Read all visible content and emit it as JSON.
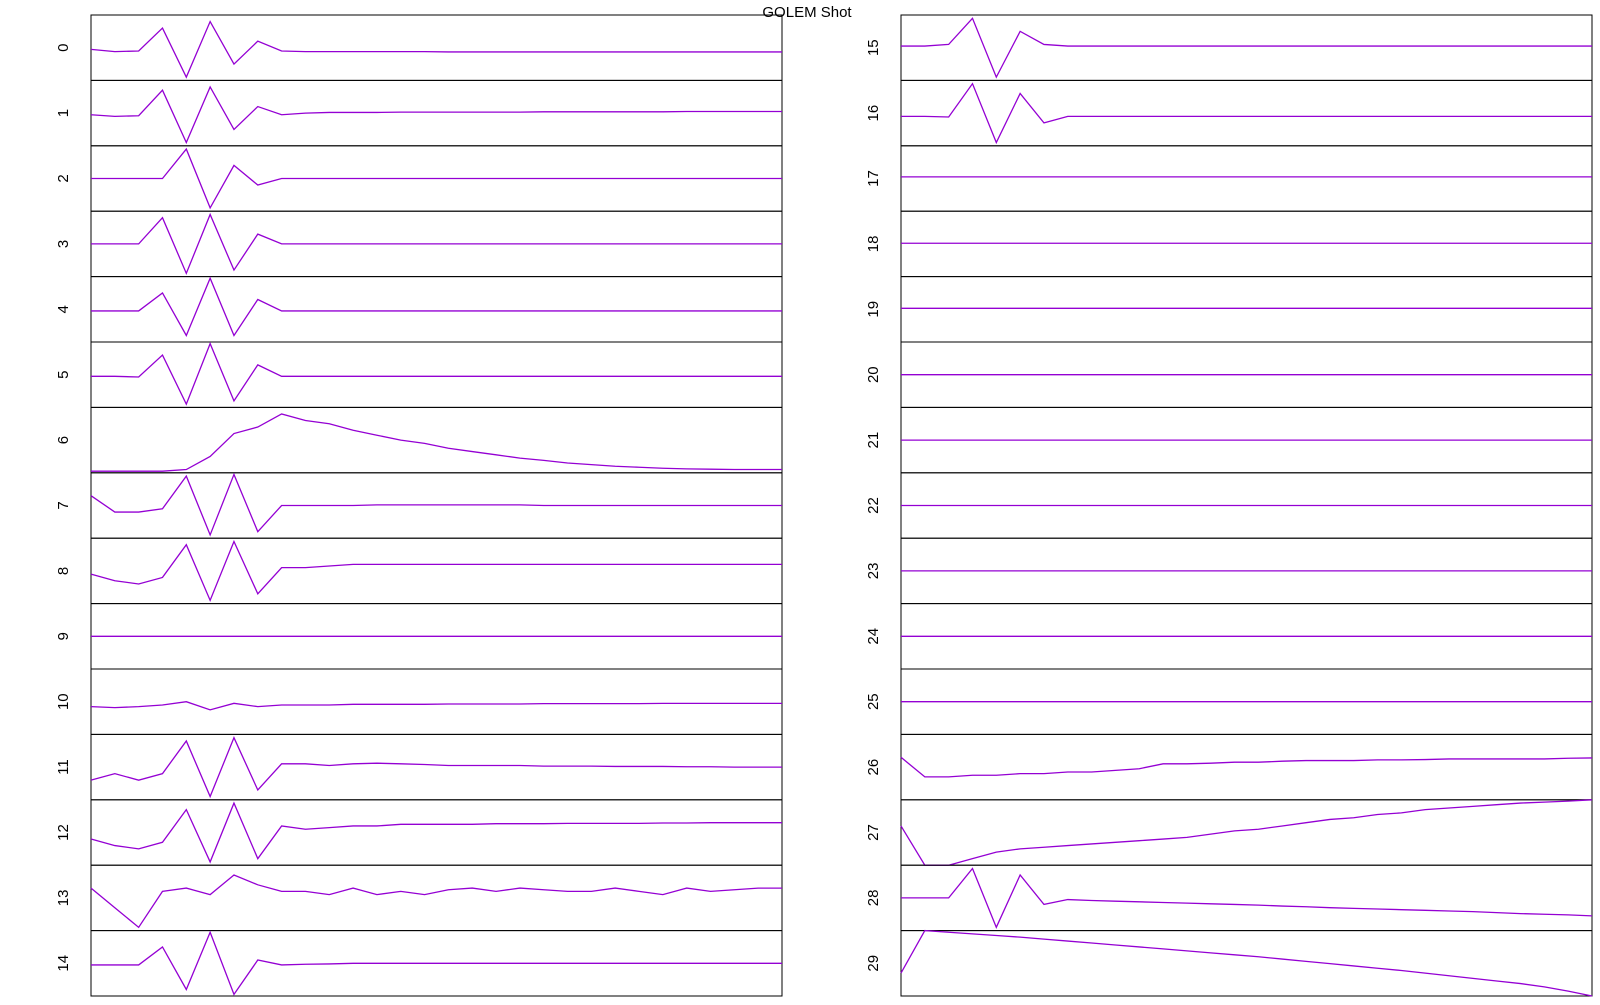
{
  "chart_data": {
    "type": "line",
    "title": "GOLEM Shot",
    "color": "#9400d3",
    "ylim": [
      -1,
      1
    ],
    "series": [
      {
        "name": "0",
        "values": [
          -0.05,
          -0.12,
          -0.1,
          0.6,
          -0.9,
          0.8,
          -0.5,
          0.2,
          -0.1,
          -0.12,
          -0.12,
          -0.12,
          -0.12,
          -0.12,
          -0.12,
          -0.13,
          -0.13,
          -0.13,
          -0.13,
          -0.13,
          -0.13,
          -0.13,
          -0.13,
          -0.13,
          -0.13,
          -0.13,
          -0.13,
          -0.13,
          -0.13,
          -0.13
        ]
      },
      {
        "name": "1",
        "values": [
          -0.05,
          -0.1,
          -0.08,
          0.7,
          -0.9,
          0.8,
          -0.5,
          0.2,
          -0.05,
          0,
          0.02,
          0.02,
          0.02,
          0.03,
          0.03,
          0.03,
          0.03,
          0.03,
          0.03,
          0.04,
          0.04,
          0.04,
          0.04,
          0.04,
          0.04,
          0.05,
          0.05,
          0.05,
          0.05,
          0.05
        ]
      },
      {
        "name": "2",
        "values": [
          0,
          0,
          0,
          0,
          0.9,
          -0.9,
          0.4,
          -0.2,
          0,
          0,
          0,
          0,
          0,
          0,
          0,
          0,
          0,
          0,
          0,
          0,
          0,
          0,
          0,
          0,
          0,
          0,
          0,
          0,
          0,
          0
        ]
      },
      {
        "name": "3",
        "values": [
          0,
          0,
          0,
          0.8,
          -0.9,
          0.9,
          -0.8,
          0.3,
          0,
          0,
          0,
          0,
          0,
          0,
          0,
          0,
          0,
          0,
          0,
          0,
          0,
          0,
          0,
          0,
          0,
          0,
          0,
          0,
          0,
          0
        ]
      },
      {
        "name": "4",
        "values": [
          -0.05,
          -0.05,
          -0.05,
          0.5,
          -0.8,
          0.95,
          -0.8,
          0.3,
          -0.05,
          -0.05,
          -0.05,
          -0.05,
          -0.05,
          -0.05,
          -0.05,
          -0.05,
          -0.05,
          -0.05,
          -0.05,
          -0.05,
          -0.05,
          -0.05,
          -0.05,
          -0.05,
          -0.05,
          -0.05,
          -0.05,
          -0.05,
          -0.05,
          -0.05
        ]
      },
      {
        "name": "5",
        "values": [
          -0.05,
          -0.05,
          -0.07,
          0.6,
          -0.9,
          0.95,
          -0.8,
          0.3,
          -0.05,
          -0.05,
          -0.05,
          -0.05,
          -0.05,
          -0.05,
          -0.05,
          -0.05,
          -0.05,
          -0.05,
          -0.05,
          -0.05,
          -0.05,
          -0.05,
          -0.05,
          -0.05,
          -0.05,
          -0.05,
          -0.05,
          -0.05,
          -0.05,
          -0.05
        ]
      },
      {
        "name": "6",
        "values": [
          -0.95,
          -0.95,
          -0.95,
          -0.95,
          -0.9,
          -0.5,
          0.2,
          0.4,
          0.8,
          0.6,
          0.5,
          0.3,
          0.15,
          0,
          -0.1,
          -0.25,
          -0.35,
          -0.45,
          -0.55,
          -0.62,
          -0.7,
          -0.75,
          -0.8,
          -0.83,
          -0.86,
          -0.88,
          -0.89,
          -0.9,
          -0.9,
          -0.9
        ]
      },
      {
        "name": "7",
        "values": [
          0.3,
          -0.2,
          -0.2,
          -0.1,
          0.9,
          -0.9,
          0.95,
          -0.8,
          0,
          0,
          0,
          0,
          0.02,
          0.02,
          0.02,
          0.02,
          0.02,
          0.02,
          0.02,
          0,
          0,
          0,
          0,
          0,
          0,
          0,
          0,
          0,
          0,
          0
        ]
      },
      {
        "name": "8",
        "values": [
          -0.1,
          -0.3,
          -0.4,
          -0.2,
          0.8,
          -0.9,
          0.9,
          -0.7,
          0.1,
          0.1,
          0.15,
          0.2,
          0.2,
          0.2,
          0.2,
          0.2,
          0.2,
          0.2,
          0.2,
          0.2,
          0.2,
          0.2,
          0.2,
          0.2,
          0.2,
          0.2,
          0.2,
          0.2,
          0.2,
          0.2
        ]
      },
      {
        "name": "9",
        "values": [
          0,
          0,
          0,
          0,
          0,
          0,
          0,
          0,
          0,
          0,
          0,
          0,
          0,
          0,
          0,
          0,
          0,
          0,
          0,
          0,
          0,
          0,
          0,
          0,
          0,
          0,
          0,
          0,
          0,
          0
        ]
      },
      {
        "name": "10",
        "values": [
          -0.15,
          -0.18,
          -0.15,
          -0.1,
          0,
          -0.25,
          -0.05,
          -0.15,
          -0.1,
          -0.1,
          -0.1,
          -0.08,
          -0.08,
          -0.08,
          -0.08,
          -0.07,
          -0.07,
          -0.07,
          -0.07,
          -0.06,
          -0.06,
          -0.06,
          -0.06,
          -0.06,
          -0.05,
          -0.05,
          -0.05,
          -0.05,
          -0.05,
          -0.05
        ]
      },
      {
        "name": "11",
        "values": [
          -0.4,
          -0.2,
          -0.4,
          -0.2,
          0.8,
          -0.9,
          0.9,
          -0.7,
          0.1,
          0.1,
          0.05,
          0.1,
          0.12,
          0.1,
          0.08,
          0.05,
          0.05,
          0.05,
          0.05,
          0.03,
          0.03,
          0.03,
          0.02,
          0.02,
          0.02,
          0.01,
          0.01,
          0,
          0,
          0
        ]
      },
      {
        "name": "12",
        "values": [
          -0.2,
          -0.4,
          -0.5,
          -0.3,
          0.7,
          -0.9,
          0.9,
          -0.8,
          0.2,
          0.1,
          0.15,
          0.2,
          0.2,
          0.25,
          0.25,
          0.25,
          0.25,
          0.27,
          0.27,
          0.27,
          0.28,
          0.28,
          0.28,
          0.28,
          0.29,
          0.29,
          0.3,
          0.3,
          0.3,
          0.3
        ]
      },
      {
        "name": "13",
        "values": [
          0.3,
          -0.3,
          -0.9,
          0.2,
          0.3,
          0.1,
          0.7,
          0.4,
          0.2,
          0.2,
          0.1,
          0.3,
          0.1,
          0.2,
          0.1,
          0.25,
          0.3,
          0.2,
          0.3,
          0.25,
          0.2,
          0.2,
          0.3,
          0.2,
          0.1,
          0.3,
          0.2,
          0.25,
          0.3,
          0.3
        ]
      },
      {
        "name": "14",
        "values": [
          -0.05,
          -0.05,
          -0.05,
          0.5,
          -0.8,
          0.95,
          -0.95,
          0.1,
          -0.05,
          -0.03,
          -0.02,
          0,
          0,
          0,
          0,
          0,
          0,
          0,
          0,
          0,
          0,
          0,
          0,
          0,
          0,
          0,
          0,
          0,
          0,
          0
        ]
      },
      {
        "name": "15",
        "values": [
          0.05,
          0.05,
          0.1,
          0.9,
          -0.9,
          0.5,
          0.1,
          0.05,
          0.05,
          0.05,
          0.05,
          0.05,
          0.05,
          0.05,
          0.05,
          0.05,
          0.05,
          0.05,
          0.05,
          0.05,
          0.05,
          0.05,
          0.05,
          0.05,
          0.05,
          0.05,
          0.05,
          0.05,
          0.05,
          0.05
        ]
      },
      {
        "name": "16",
        "values": [
          -0.1,
          -0.1,
          -0.12,
          0.9,
          -0.9,
          0.6,
          -0.3,
          -0.1,
          -0.1,
          -0.1,
          -0.1,
          -0.1,
          -0.1,
          -0.1,
          -0.1,
          -0.1,
          -0.1,
          -0.1,
          -0.1,
          -0.1,
          -0.1,
          -0.1,
          -0.1,
          -0.1,
          -0.1,
          -0.1,
          -0.1,
          -0.1,
          -0.1,
          -0.1
        ]
      },
      {
        "name": "17",
        "values": [
          0.05,
          0.05,
          0.05,
          0.05,
          0.05,
          0.05,
          0.05,
          0.05,
          0.05,
          0.05,
          0.05,
          0.05,
          0.05,
          0.05,
          0.05,
          0.05,
          0.05,
          0.05,
          0.05,
          0.05,
          0.05,
          0.05,
          0.05,
          0.05,
          0.05,
          0.05,
          0.05,
          0.05,
          0.05,
          0.05
        ]
      },
      {
        "name": "18",
        "values": [
          0.02,
          0.02,
          0.02,
          0.02,
          0.02,
          0.02,
          0.02,
          0.02,
          0.02,
          0.02,
          0.02,
          0.02,
          0.02,
          0.02,
          0.02,
          0.02,
          0.02,
          0.02,
          0.02,
          0.02,
          0.02,
          0.02,
          0.02,
          0.02,
          0.02,
          0.02,
          0.02,
          0.02,
          0.02,
          0.02
        ]
      },
      {
        "name": "19",
        "values": [
          0.03,
          0.03,
          0.03,
          0.03,
          0.03,
          0.03,
          0.03,
          0.03,
          0.03,
          0.03,
          0.03,
          0.03,
          0.03,
          0.03,
          0.03,
          0.03,
          0.03,
          0.03,
          0.03,
          0.03,
          0.03,
          0.03,
          0.03,
          0.03,
          0.03,
          0.03,
          0.03,
          0.03,
          0.03,
          0.03
        ]
      },
      {
        "name": "20",
        "values": [
          0,
          0,
          0,
          0,
          0,
          0,
          0,
          0,
          0,
          0,
          0,
          0,
          0,
          0,
          0,
          0,
          0,
          0,
          0,
          0,
          0,
          0,
          0,
          0,
          0,
          0,
          0,
          0,
          0,
          0
        ]
      },
      {
        "name": "21",
        "values": [
          0,
          0,
          0,
          0,
          0,
          0,
          0,
          0,
          0,
          0,
          0,
          0,
          0,
          0,
          0,
          0,
          0,
          0,
          0,
          0,
          0,
          0,
          0,
          0,
          0,
          0,
          0,
          0,
          0,
          0
        ]
      },
      {
        "name": "22",
        "values": [
          0,
          0,
          0,
          0,
          0,
          0,
          0,
          0,
          0,
          0,
          0,
          0,
          0,
          0,
          0,
          0,
          0,
          0,
          0,
          0,
          0,
          0,
          0,
          0,
          0,
          0,
          0,
          0,
          0,
          0
        ]
      },
      {
        "name": "23",
        "values": [
          0,
          0,
          0,
          0,
          0,
          0,
          0,
          0,
          0,
          0,
          0,
          0,
          0,
          0,
          0,
          0,
          0,
          0,
          0,
          0,
          0,
          0,
          0,
          0,
          0,
          0,
          0,
          0,
          0,
          0
        ]
      },
      {
        "name": "24",
        "values": [
          0,
          0,
          0,
          0,
          0,
          0,
          0,
          0,
          0,
          0,
          0,
          0,
          0,
          0,
          0,
          0,
          0,
          0,
          0,
          0,
          0,
          0,
          0,
          0,
          0,
          0,
          0,
          0,
          0,
          0
        ]
      },
      {
        "name": "25",
        "values": [
          0,
          0,
          0,
          0,
          0,
          0,
          0,
          0,
          0,
          0,
          0,
          0,
          0,
          0,
          0,
          0,
          0,
          0,
          0,
          0,
          0,
          0,
          0,
          0,
          0,
          0,
          0,
          0,
          0,
          0
        ]
      },
      {
        "name": "26",
        "values": [
          0.3,
          -0.3,
          -0.3,
          -0.25,
          -0.25,
          -0.2,
          -0.2,
          -0.15,
          -0.15,
          -0.1,
          -0.05,
          0.1,
          0.1,
          0.12,
          0.15,
          0.15,
          0.18,
          0.2,
          0.2,
          0.2,
          0.22,
          0.22,
          0.23,
          0.25,
          0.25,
          0.25,
          0.25,
          0.25,
          0.27,
          0.28
        ]
      },
      {
        "name": "27",
        "values": [
          0.2,
          -1,
          -1,
          -0.8,
          -0.6,
          -0.5,
          -0.45,
          -0.4,
          -0.35,
          -0.3,
          -0.25,
          -0.2,
          -0.15,
          -0.05,
          0.05,
          0.1,
          0.2,
          0.3,
          0.4,
          0.45,
          0.55,
          0.6,
          0.7,
          0.75,
          0.8,
          0.85,
          0.9,
          0.93,
          0.96,
          1
        ]
      },
      {
        "name": "28",
        "values": [
          0,
          0,
          0,
          0.9,
          -0.9,
          0.7,
          -0.2,
          -0.05,
          -0.08,
          -0.1,
          -0.12,
          -0.14,
          -0.16,
          -0.18,
          -0.2,
          -0.22,
          -0.25,
          -0.27,
          -0.3,
          -0.32,
          -0.34,
          -0.36,
          -0.38,
          -0.4,
          -0.42,
          -0.45,
          -0.48,
          -0.5,
          -0.52,
          -0.55
        ]
      },
      {
        "name": "29",
        "values": [
          -0.3,
          1,
          0.95,
          0.9,
          0.85,
          0.8,
          0.74,
          0.68,
          0.62,
          0.56,
          0.5,
          0.44,
          0.38,
          0.32,
          0.26,
          0.2,
          0.13,
          0.06,
          -0.01,
          -0.08,
          -0.15,
          -0.22,
          -0.3,
          -0.38,
          -0.46,
          -0.54,
          -0.62,
          -0.72,
          -0.85,
          -1
        ]
      }
    ]
  }
}
